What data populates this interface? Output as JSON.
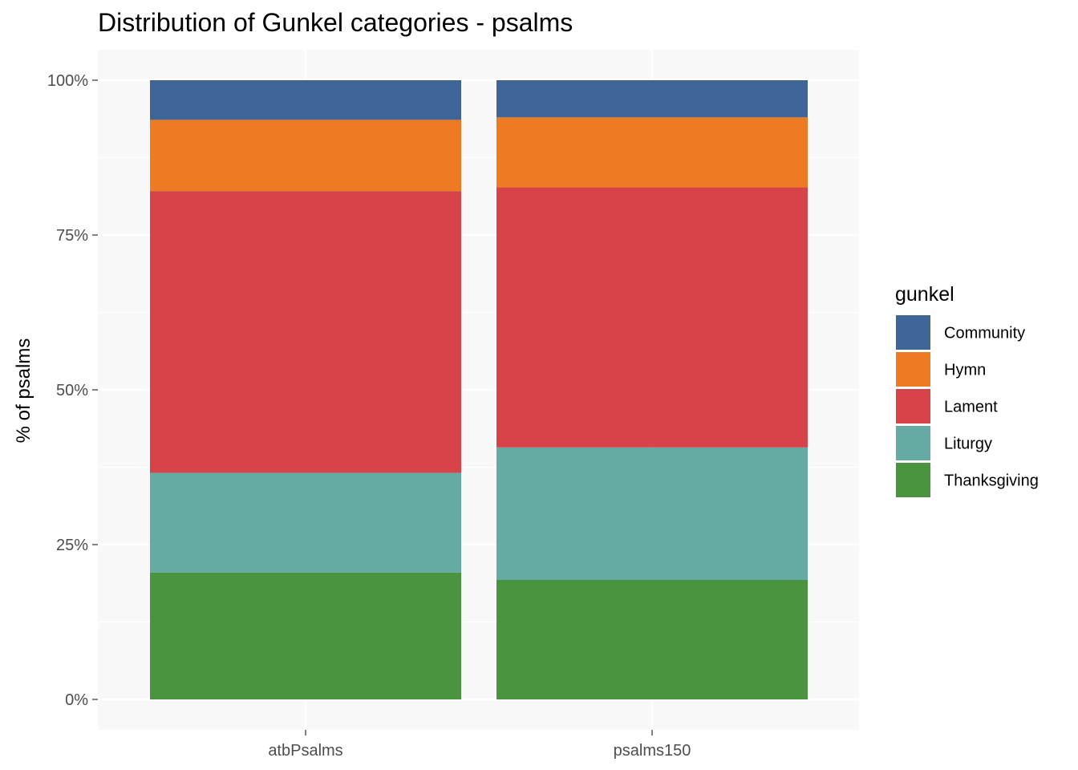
{
  "chart_data": {
    "type": "bar",
    "stacked": true,
    "title": "Distribution of Gunkel categories - psalms",
    "xlabel": "",
    "ylabel": "% of psalms",
    "ylim": [
      0,
      1
    ],
    "yticks": [
      0,
      0.25,
      0.5,
      0.75,
      1.0
    ],
    "ytick_labels": [
      "0%",
      "25%",
      "50%",
      "75%",
      "100%"
    ],
    "categories": [
      "atbPsalms",
      "psalms150"
    ],
    "series": [
      {
        "name": "Thanksgiving",
        "values": [
          0.205,
          0.193
        ]
      },
      {
        "name": "Liturgy",
        "values": [
          0.161,
          0.214
        ]
      },
      {
        "name": "Lament",
        "values": [
          0.455,
          0.42
        ]
      },
      {
        "name": "Hymn",
        "values": [
          0.115,
          0.113
        ]
      },
      {
        "name": "Community",
        "values": [
          0.064,
          0.06
        ]
      }
    ],
    "legend": {
      "title": "gunkel",
      "position": "right",
      "entries": [
        "Community",
        "Hymn",
        "Lament",
        "Liturgy",
        "Thanksgiving"
      ]
    },
    "colors": {
      "Community": "#3F6496",
      "Hymn": "#EC7B23",
      "Lament": "#D84249",
      "Liturgy": "#66ABA3",
      "Thanksgiving": "#4A933F"
    },
    "grid": true,
    "background": "#F8F8F8"
  }
}
